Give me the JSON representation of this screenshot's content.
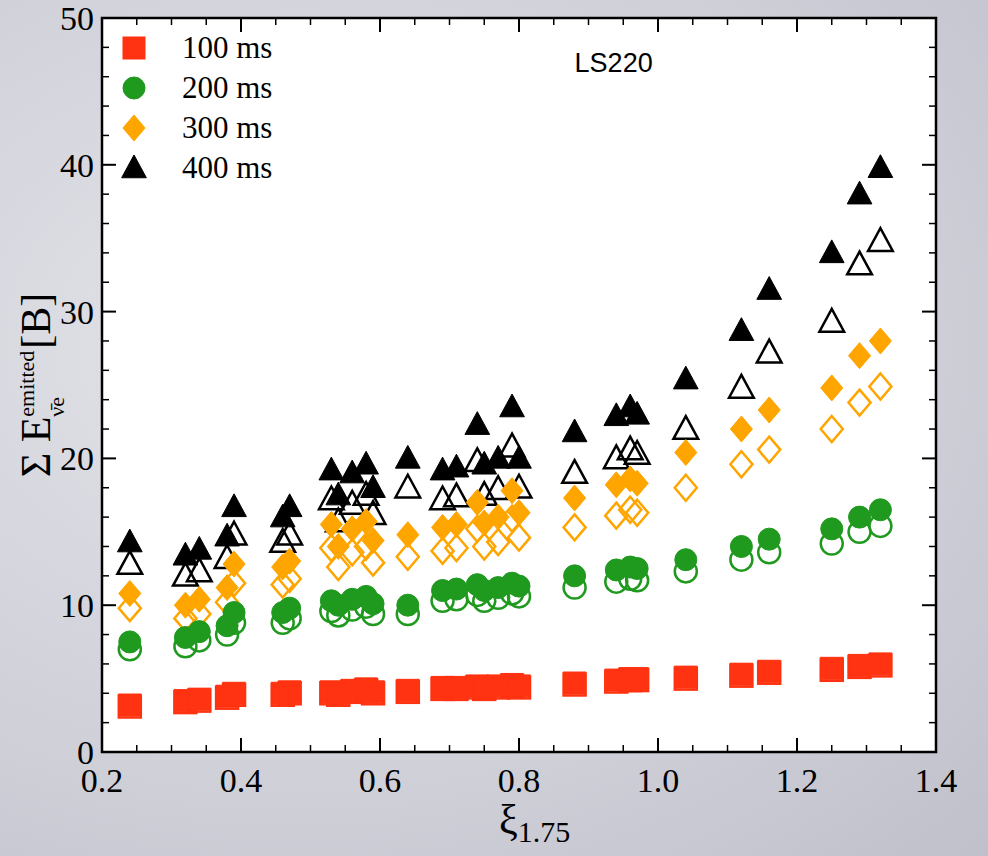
{
  "chart_data": {
    "type": "scatter",
    "annotation": {
      "text": "LS220",
      "x": 0.88,
      "y": 46.3
    },
    "x_label": {
      "text": "ξ",
      "sub": "1.75"
    },
    "y_label": {
      "text": "Σ E",
      "sup": "emitted",
      "sub": "ν̄e",
      "unit": "[B]"
    },
    "xlim": [
      0.2,
      1.4
    ],
    "xticks": [
      0.2,
      0.4,
      0.6,
      0.8,
      {
        "value": 1,
        "label": "1.0"
      },
      1.2,
      1.4
    ],
    "ylim": [
      0,
      50
    ],
    "yticks": [
      0,
      10,
      20,
      30,
      40,
      50
    ],
    "legend": "upper left",
    "x": [
      0.24,
      0.32,
      0.34,
      0.38,
      0.39,
      0.46,
      0.47,
      0.53,
      0.54,
      0.56,
      0.58,
      0.59,
      0.64,
      0.69,
      0.71,
      0.74,
      0.75,
      0.77,
      0.79,
      0.8,
      0.88,
      0.94,
      0.96,
      0.97,
      1.04,
      1.12,
      1.16,
      1.25,
      1.29,
      1.32
    ],
    "series": [
      {
        "name": "100 ms",
        "color": "#ff3311",
        "marker": "square",
        "values": [
          3.2,
          3.5,
          3.6,
          3.8,
          4.0,
          4.0,
          4.1,
          4.1,
          4.0,
          4.2,
          4.3,
          4.1,
          4.2,
          4.4,
          4.4,
          4.5,
          4.4,
          4.5,
          4.6,
          4.5,
          4.7,
          4.9,
          5.0,
          5.0,
          5.1,
          5.3,
          5.5,
          5.7,
          5.9,
          6.0
        ]
      },
      {
        "color": "#ff3311",
        "marker": "square-open",
        "values": [
          3.1,
          3.4,
          3.5,
          3.7,
          3.9,
          3.9,
          4.0,
          4.0,
          3.9,
          4.1,
          4.2,
          4.0,
          4.1,
          4.3,
          4.3,
          4.4,
          4.3,
          4.4,
          4.5,
          4.4,
          4.6,
          4.8,
          4.9,
          4.9,
          5.0,
          5.2,
          5.4,
          5.6,
          5.8,
          5.9
        ]
      },
      {
        "name": "200 ms",
        "color": "#1f9a1f",
        "marker": "circle",
        "values": [
          7.5,
          7.8,
          8.2,
          8.6,
          9.5,
          9.5,
          9.8,
          10.3,
          10.0,
          10.4,
          10.6,
          10.1,
          10.0,
          11.0,
          11.1,
          11.4,
          11.0,
          11.2,
          11.5,
          11.3,
          12.0,
          12.4,
          12.6,
          12.5,
          13.1,
          14.0,
          14.5,
          15.2,
          16.0,
          16.5
        ]
      },
      {
        "color": "#1f9a1f",
        "marker": "circle-open",
        "values": [
          7.0,
          7.2,
          7.6,
          8.0,
          8.8,
          8.8,
          9.1,
          9.6,
          9.3,
          9.7,
          9.9,
          9.4,
          9.4,
          10.3,
          10.4,
          10.7,
          10.3,
          10.5,
          10.8,
          10.6,
          11.2,
          11.6,
          11.8,
          11.7,
          12.3,
          13.1,
          13.6,
          14.2,
          15.0,
          15.4
        ]
      },
      {
        "name": "300 ms",
        "color": "#ffa500",
        "marker": "diamond",
        "values": [
          10.8,
          10.0,
          10.4,
          11.2,
          12.8,
          12.6,
          13.0,
          15.5,
          14.0,
          15.2,
          15.7,
          14.4,
          14.8,
          15.3,
          15.5,
          17.0,
          15.6,
          16.0,
          17.8,
          16.3,
          17.3,
          18.2,
          18.6,
          18.3,
          20.4,
          22.0,
          23.3,
          24.8,
          27.0,
          28.0
        ]
      },
      {
        "color": "#ffa500",
        "marker": "diamond-open",
        "values": [
          9.8,
          9.1,
          9.4,
          10.2,
          11.5,
          11.4,
          11.8,
          13.9,
          12.6,
          13.6,
          14.0,
          12.9,
          13.3,
          13.7,
          13.9,
          15.2,
          14.0,
          14.3,
          15.9,
          14.6,
          15.3,
          16.1,
          16.5,
          16.3,
          18.0,
          19.6,
          20.6,
          22.0,
          23.8,
          24.9
        ]
      },
      {
        "name": "400 ms",
        "color": "#000000",
        "marker": "triangle",
        "values": [
          14.3,
          13.4,
          13.8,
          14.7,
          16.7,
          16.0,
          16.7,
          19.2,
          17.5,
          19.0,
          19.6,
          18.0,
          20.0,
          19.2,
          19.4,
          22.3,
          19.6,
          20.0,
          23.5,
          20.0,
          21.8,
          22.9,
          23.5,
          23.0,
          25.4,
          28.7,
          31.5,
          34.0,
          38.0,
          39.8
        ]
      },
      {
        "color": "#000000",
        "marker": "triangle-open",
        "values": [
          12.8,
          12.0,
          12.3,
          13.2,
          14.8,
          14.3,
          14.8,
          17.2,
          15.7,
          16.9,
          17.5,
          16.2,
          18.0,
          17.2,
          17.4,
          19.8,
          17.5,
          17.9,
          20.8,
          18.0,
          19.0,
          20.0,
          20.6,
          20.3,
          22.0,
          24.8,
          27.2,
          29.3,
          33.2,
          34.8
        ]
      }
    ]
  }
}
